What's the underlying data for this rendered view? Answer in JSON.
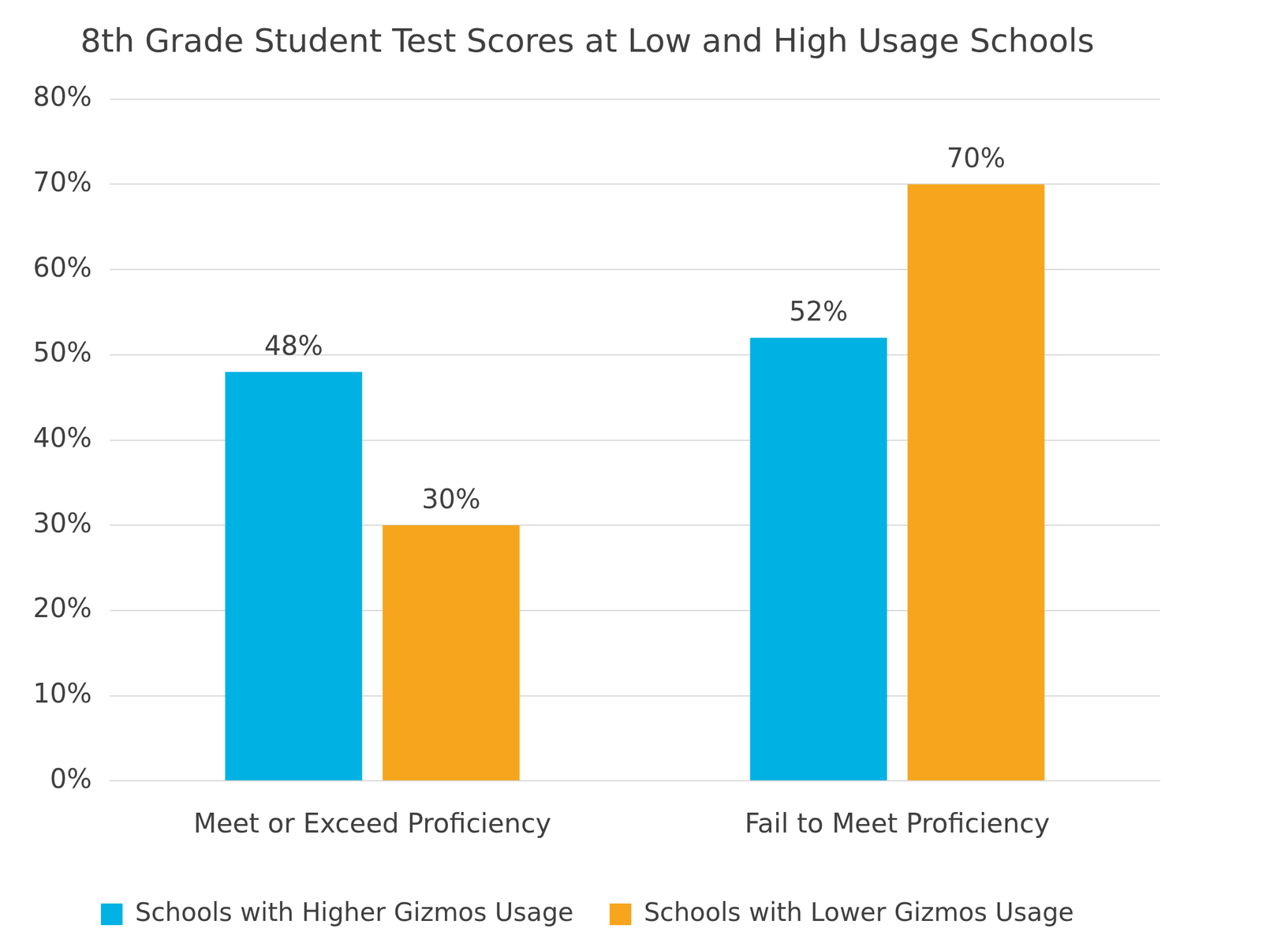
{
  "chart_data": {
    "type": "bar",
    "title": "8th Grade Student Test Scores at Low and High Usage Schools",
    "categories": [
      "Meet or Exceed Proficiency",
      "Fail to Meet Proficiency"
    ],
    "series": [
      {
        "name": "Schools with Higher Gizmos Usage",
        "color": "#00b2e3",
        "values": [
          48,
          52
        ],
        "value_labels": [
          "48%",
          "52%"
        ]
      },
      {
        "name": "Schools with Lower Gizmos Usage",
        "color": "#f7a51d",
        "values": [
          30,
          70
        ],
        "value_labels": [
          "30%",
          "70%"
        ]
      }
    ],
    "ylim": [
      0,
      80
    ],
    "yticks": [
      {
        "value": 0,
        "label": "0%"
      },
      {
        "value": 10,
        "label": "10%"
      },
      {
        "value": 20,
        "label": "20%"
      },
      {
        "value": 30,
        "label": "30%"
      },
      {
        "value": 40,
        "label": "40%"
      },
      {
        "value": 50,
        "label": "50%"
      },
      {
        "value": 60,
        "label": "60%"
      },
      {
        "value": 70,
        "label": "70%"
      },
      {
        "value": 80,
        "label": "80%"
      }
    ],
    "grid": true,
    "legend": "bottom",
    "data_labels": true
  }
}
